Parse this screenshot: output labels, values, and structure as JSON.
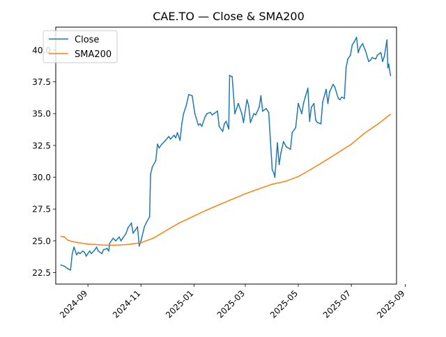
{
  "chart_data": {
    "type": "line",
    "title": "CAE.TO — Close & SMA200",
    "xlabel": "",
    "ylabel": "",
    "xlim": [
      "2024-07-26",
      "2025-08-22"
    ],
    "ylim": [
      21.6,
      41.8
    ],
    "grid": false,
    "legend_position": "upper left",
    "x_ticks": [
      {
        "value": "2024-09-01",
        "label": "2024-09"
      },
      {
        "value": "2024-11-01",
        "label": "2024-11"
      },
      {
        "value": "2025-01-01",
        "label": "2025-01"
      },
      {
        "value": "2025-03-01",
        "label": "2025-03"
      },
      {
        "value": "2025-05-01",
        "label": "2025-05"
      },
      {
        "value": "2025-07-01",
        "label": "2025-07"
      },
      {
        "value": "2025-09-01",
        "label": "2025-09"
      }
    ],
    "y_ticks": [
      {
        "value": 22.5,
        "label": "22.5"
      },
      {
        "value": 25.0,
        "label": "25.0"
      },
      {
        "value": 27.5,
        "label": "27.5"
      },
      {
        "value": 30.0,
        "label": "30.0"
      },
      {
        "value": 32.5,
        "label": "32.5"
      },
      {
        "value": 35.0,
        "label": "35.0"
      },
      {
        "value": 37.5,
        "label": "37.5"
      },
      {
        "value": 40.0,
        "label": "40.0"
      }
    ],
    "series": [
      {
        "name": "Close",
        "color": "#1f77b4",
        "points": [
          [
            "2024-08-01",
            23.1
          ],
          [
            "2024-08-05",
            23.0
          ],
          [
            "2024-08-07",
            22.9
          ],
          [
            "2024-08-09",
            22.8
          ],
          [
            "2024-08-12",
            22.7
          ],
          [
            "2024-08-14",
            24.0
          ],
          [
            "2024-08-16",
            24.5
          ],
          [
            "2024-08-19",
            23.9
          ],
          [
            "2024-08-21",
            24.1
          ],
          [
            "2024-08-23",
            24.0
          ],
          [
            "2024-08-26",
            24.2
          ],
          [
            "2024-08-28",
            24.1
          ],
          [
            "2024-08-30",
            23.8
          ],
          [
            "2024-09-03",
            24.2
          ],
          [
            "2024-09-05",
            24.0
          ],
          [
            "2024-09-09",
            24.3
          ],
          [
            "2024-09-11",
            24.5
          ],
          [
            "2024-09-13",
            24.2
          ],
          [
            "2024-09-17",
            24.0
          ],
          [
            "2024-09-19",
            24.3
          ],
          [
            "2024-09-23",
            24.4
          ],
          [
            "2024-09-25",
            24.2
          ],
          [
            "2024-09-26",
            24.8
          ],
          [
            "2024-09-30",
            25.2
          ],
          [
            "2024-10-03",
            25.0
          ],
          [
            "2024-10-07",
            25.3
          ],
          [
            "2024-10-09",
            25.0
          ],
          [
            "2024-10-11",
            25.2
          ],
          [
            "2024-10-15",
            25.6
          ],
          [
            "2024-10-17",
            26.0
          ],
          [
            "2024-10-21",
            26.4
          ],
          [
            "2024-10-23",
            25.6
          ],
          [
            "2024-10-25",
            25.8
          ],
          [
            "2024-10-28",
            26.1
          ],
          [
            "2024-10-30",
            24.6
          ],
          [
            "2024-11-01",
            25.0
          ],
          [
            "2024-11-05",
            26.1
          ],
          [
            "2024-11-07",
            26.4
          ],
          [
            "2024-11-11",
            26.9
          ],
          [
            "2024-11-12",
            30.2
          ],
          [
            "2024-11-14",
            30.8
          ],
          [
            "2024-11-18",
            31.3
          ],
          [
            "2024-11-20",
            32.6
          ],
          [
            "2024-11-22",
            32.3
          ],
          [
            "2024-11-25",
            32.6
          ],
          [
            "2024-11-28",
            32.8
          ],
          [
            "2024-12-03",
            33.2
          ],
          [
            "2024-12-05",
            33.0
          ],
          [
            "2024-12-09",
            33.3
          ],
          [
            "2024-12-11",
            33.1
          ],
          [
            "2024-12-13",
            33.5
          ],
          [
            "2024-12-16",
            32.9
          ],
          [
            "2024-12-18",
            34.2
          ],
          [
            "2024-12-20",
            35.0
          ],
          [
            "2024-12-23",
            35.6
          ],
          [
            "2024-12-26",
            36.5
          ],
          [
            "2024-12-30",
            36.4
          ],
          [
            "2025-01-02",
            35.0
          ],
          [
            "2025-01-06",
            34.1
          ],
          [
            "2025-01-08",
            34.2
          ],
          [
            "2025-01-10",
            34.0
          ],
          [
            "2025-01-14",
            34.8
          ],
          [
            "2025-01-16",
            35.0
          ],
          [
            "2025-01-20",
            35.1
          ],
          [
            "2025-01-22",
            34.9
          ],
          [
            "2025-01-24",
            35.0
          ],
          [
            "2025-01-28",
            35.2
          ],
          [
            "2025-01-30",
            34.0
          ],
          [
            "2025-02-03",
            33.6
          ],
          [
            "2025-02-05",
            34.2
          ],
          [
            "2025-02-07",
            34.4
          ],
          [
            "2025-02-10",
            33.8
          ],
          [
            "2025-02-11",
            38.0
          ],
          [
            "2025-02-14",
            37.9
          ],
          [
            "2025-02-17",
            35.0
          ],
          [
            "2025-02-19",
            35.4
          ],
          [
            "2025-02-21",
            35.8
          ],
          [
            "2025-02-25",
            35.0
          ],
          [
            "2025-02-27",
            34.3
          ],
          [
            "2025-03-03",
            36.1
          ],
          [
            "2025-03-05",
            35.6
          ],
          [
            "2025-03-07",
            34.3
          ],
          [
            "2025-03-11",
            35.0
          ],
          [
            "2025-03-13",
            34.9
          ],
          [
            "2025-03-17",
            35.5
          ],
          [
            "2025-03-19",
            36.4
          ],
          [
            "2025-03-21",
            35.2
          ],
          [
            "2025-03-25",
            35.4
          ],
          [
            "2025-03-28",
            35.1
          ],
          [
            "2025-04-01",
            30.6
          ],
          [
            "2025-04-03",
            30.3
          ],
          [
            "2025-04-04",
            30.0
          ],
          [
            "2025-04-07",
            32.7
          ],
          [
            "2025-04-09",
            31.0
          ],
          [
            "2025-04-11",
            31.9
          ],
          [
            "2025-04-14",
            32.8
          ],
          [
            "2025-04-17",
            32.4
          ],
          [
            "2025-04-22",
            32.2
          ],
          [
            "2025-04-24",
            33.5
          ],
          [
            "2025-04-28",
            33.9
          ],
          [
            "2025-05-01",
            35.8
          ],
          [
            "2025-05-05",
            35.0
          ],
          [
            "2025-05-07",
            35.8
          ],
          [
            "2025-05-09",
            36.3
          ],
          [
            "2025-05-12",
            37.0
          ],
          [
            "2025-05-14",
            34.4
          ],
          [
            "2025-05-16",
            35.5
          ],
          [
            "2025-05-19",
            35.8
          ],
          [
            "2025-05-21",
            34.5
          ],
          [
            "2025-05-23",
            34.3
          ],
          [
            "2025-05-27",
            34.2
          ],
          [
            "2025-05-29",
            35.9
          ],
          [
            "2025-06-02",
            36.9
          ],
          [
            "2025-06-04",
            35.8
          ],
          [
            "2025-06-06",
            36.7
          ],
          [
            "2025-06-10",
            37.3
          ],
          [
            "2025-06-12",
            37.1
          ],
          [
            "2025-06-16",
            36.2
          ],
          [
            "2025-06-18",
            36.1
          ],
          [
            "2025-06-20",
            36.3
          ],
          [
            "2025-06-23",
            36.2
          ],
          [
            "2025-06-25",
            38.6
          ],
          [
            "2025-06-27",
            39.3
          ],
          [
            "2025-06-30",
            39.6
          ],
          [
            "2025-07-02",
            40.4
          ],
          [
            "2025-07-04",
            40.6
          ],
          [
            "2025-07-07",
            41.0
          ],
          [
            "2025-07-09",
            39.8
          ],
          [
            "2025-07-11",
            40.2
          ],
          [
            "2025-07-14",
            40.5
          ],
          [
            "2025-07-17",
            40.0
          ],
          [
            "2025-07-21",
            39.1
          ],
          [
            "2025-07-23",
            39.2
          ],
          [
            "2025-07-25",
            39.4
          ],
          [
            "2025-07-29",
            39.3
          ],
          [
            "2025-07-31",
            39.6
          ],
          [
            "2025-08-04",
            39.8
          ],
          [
            "2025-08-06",
            39.1
          ],
          [
            "2025-08-08",
            39.5
          ],
          [
            "2025-08-11",
            40.8
          ],
          [
            "2025-08-12",
            38.6
          ],
          [
            "2025-08-13",
            38.9
          ],
          [
            "2025-08-15",
            38.0
          ]
        ]
      },
      {
        "name": "SMA200",
        "color": "#ff7f0e",
        "points": [
          [
            "2024-08-01",
            25.35
          ],
          [
            "2024-08-05",
            25.3
          ],
          [
            "2024-08-09",
            25.05
          ],
          [
            "2024-08-14",
            24.95
          ],
          [
            "2024-08-21",
            24.85
          ],
          [
            "2024-09-01",
            24.75
          ],
          [
            "2024-09-15",
            24.68
          ],
          [
            "2024-10-01",
            24.65
          ],
          [
            "2024-10-15",
            24.7
          ],
          [
            "2024-11-01",
            24.85
          ],
          [
            "2024-11-15",
            25.2
          ],
          [
            "2024-12-01",
            25.85
          ],
          [
            "2024-12-15",
            26.4
          ],
          [
            "2025-01-01",
            26.95
          ],
          [
            "2025-01-15",
            27.4
          ],
          [
            "2025-02-01",
            27.9
          ],
          [
            "2025-02-15",
            28.3
          ],
          [
            "2025-03-01",
            28.7
          ],
          [
            "2025-03-15",
            29.05
          ],
          [
            "2025-04-01",
            29.45
          ],
          [
            "2025-04-15",
            29.65
          ],
          [
            "2025-05-01",
            30.05
          ],
          [
            "2025-05-15",
            30.6
          ],
          [
            "2025-06-01",
            31.3
          ],
          [
            "2025-06-15",
            31.9
          ],
          [
            "2025-07-01",
            32.6
          ],
          [
            "2025-07-15",
            33.4
          ],
          [
            "2025-08-01",
            34.2
          ],
          [
            "2025-08-15",
            34.95
          ]
        ]
      }
    ]
  }
}
